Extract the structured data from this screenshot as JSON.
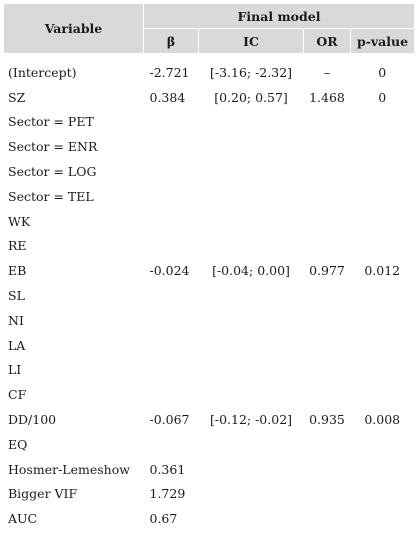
{
  "header": {
    "variable": "Variable",
    "group": "Final model",
    "columns": [
      "β",
      "IC",
      "OR",
      "p-value"
    ]
  },
  "rows": [
    {
      "variable": "(Intercept)",
      "beta": "-2.721",
      "ic": "[-3.16; -2.32]",
      "or": "–",
      "p": "0"
    },
    {
      "variable": "SZ",
      "beta": "0.384",
      "ic": "[0.20; 0.57]",
      "or": "1.468",
      "p": "0"
    },
    {
      "variable": "Sector = PET",
      "beta": "",
      "ic": "",
      "or": "",
      "p": ""
    },
    {
      "variable": "Sector = ENR",
      "beta": "",
      "ic": "",
      "or": "",
      "p": ""
    },
    {
      "variable": "Sector = LOG",
      "beta": "",
      "ic": "",
      "or": "",
      "p": ""
    },
    {
      "variable": "Sector = TEL",
      "beta": "",
      "ic": "",
      "or": "",
      "p": ""
    },
    {
      "variable": "WK",
      "beta": "",
      "ic": "",
      "or": "",
      "p": ""
    },
    {
      "variable": "RE",
      "beta": "",
      "ic": "",
      "or": "",
      "p": ""
    },
    {
      "variable": "EB",
      "beta": "-0.024",
      "ic": "[-0.04; 0.00]",
      "or": "0.977",
      "p": "0.012"
    },
    {
      "variable": "SL",
      "beta": "",
      "ic": "",
      "or": "",
      "p": ""
    },
    {
      "variable": "NI",
      "beta": "",
      "ic": "",
      "or": "",
      "p": ""
    },
    {
      "variable": "LA",
      "beta": "",
      "ic": "",
      "or": "",
      "p": ""
    },
    {
      "variable": "LI",
      "beta": "",
      "ic": "",
      "or": "",
      "p": ""
    },
    {
      "variable": "CF",
      "beta": "",
      "ic": "",
      "or": "",
      "p": ""
    },
    {
      "variable": "DD/100",
      "beta": "-0.067",
      "ic": "[-0.12; -0.02]",
      "or": "0.935",
      "p": "0.008"
    },
    {
      "variable": "EQ",
      "beta": "",
      "ic": "",
      "or": "",
      "p": ""
    },
    {
      "variable": "Hosmer-Lemeshow",
      "beta": "0.361",
      "ic": "",
      "or": "",
      "p": ""
    },
    {
      "variable": "Bigger VIF",
      "beta": "1.729",
      "ic": "",
      "or": "",
      "p": ""
    },
    {
      "variable": "AUC",
      "beta": "0.67",
      "ic": "",
      "or": "",
      "p": ""
    }
  ]
}
